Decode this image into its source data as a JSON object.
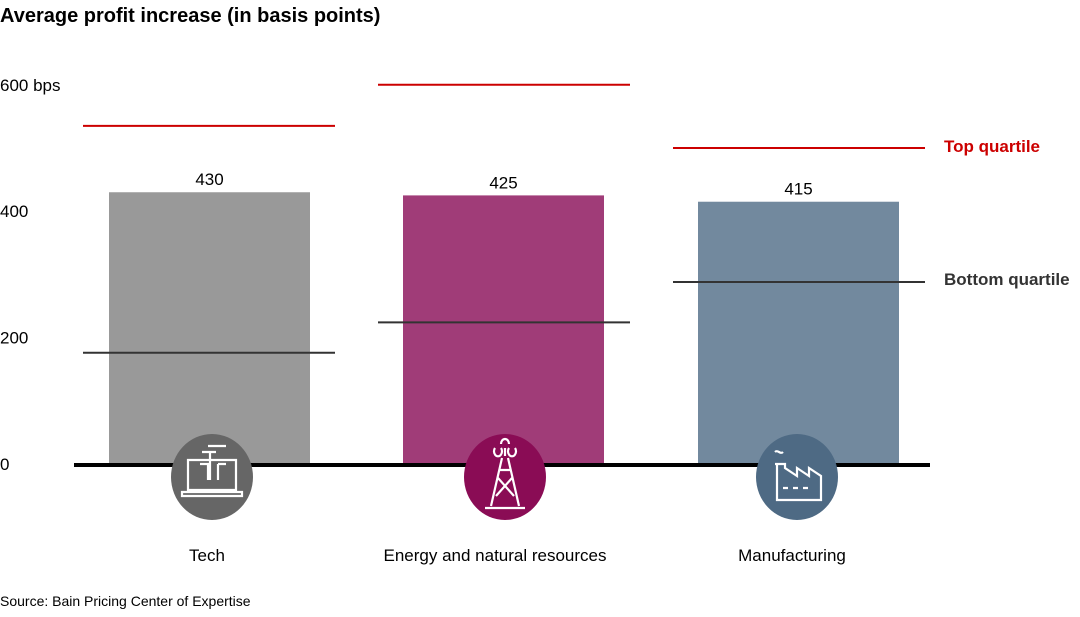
{
  "chart_data": {
    "type": "bar",
    "title": "Average profit increase (in basis points)",
    "source": "Source: Bain Pricing Center of Expertise",
    "y_ticks": [
      {
        "value": 0,
        "label": "0"
      },
      {
        "value": 200,
        "label": "200"
      },
      {
        "value": 400,
        "label": "400"
      },
      {
        "value": 600,
        "label": "600 bps"
      }
    ],
    "ylim": [
      0,
      600
    ],
    "grid": false,
    "categories": [
      "Tech",
      "Energy and natural resources",
      "Manufacturing"
    ],
    "values": [
      430,
      425,
      415
    ],
    "value_labels": [
      "430",
      "425",
      "415"
    ],
    "top_quartile": [
      535,
      600,
      500
    ],
    "bottom_quartile": [
      176,
      224,
      288
    ],
    "top_quartile_label": "Top quartile",
    "bottom_quartile_label": "Bottom quartile",
    "icons": [
      "laptop-icon",
      "oil-derrick-icon",
      "factory-icon"
    ],
    "colors": {
      "bars": [
        "#999999",
        "#a03c78",
        "#72899e"
      ],
      "icon_circles": [
        "#666666",
        "#8a0c55",
        "#4e6a84"
      ],
      "top_quartile": "#cc0000",
      "bottom_quartile": "#333333"
    }
  }
}
